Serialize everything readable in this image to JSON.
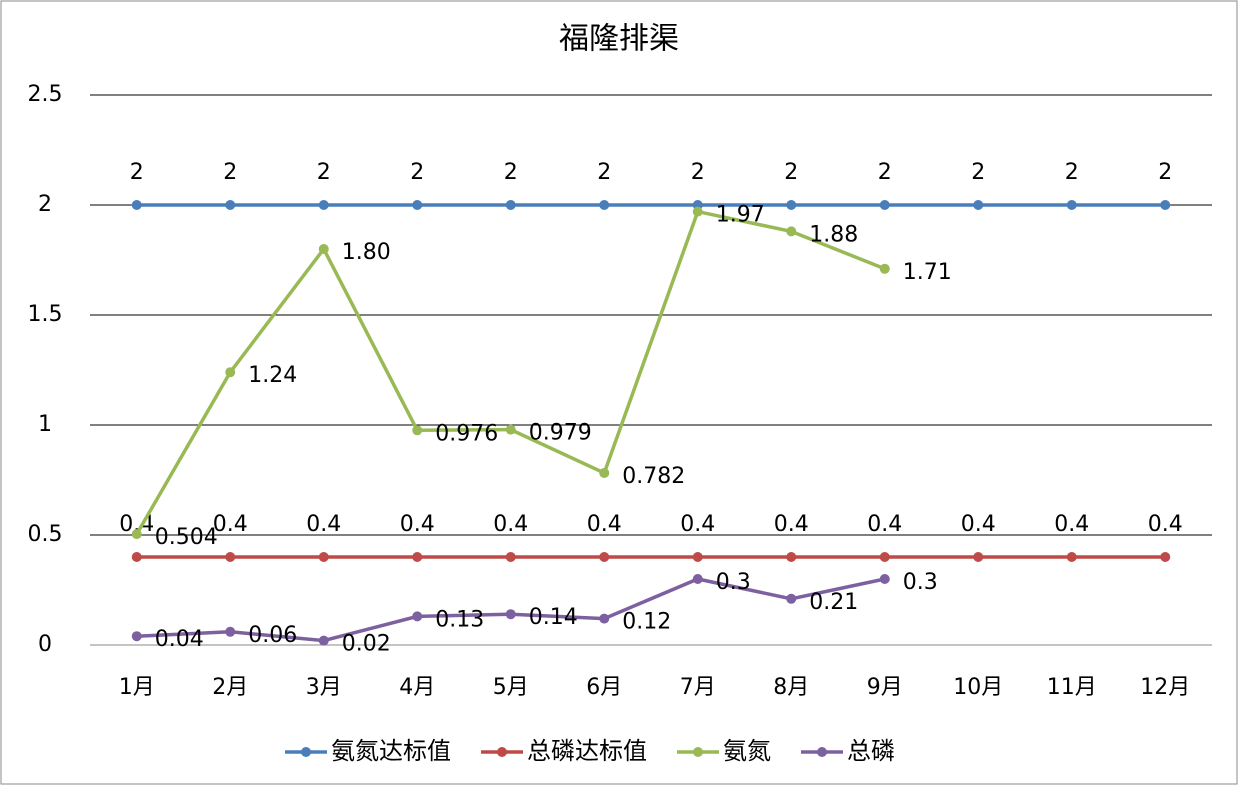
{
  "chart_data": {
    "type": "line",
    "title": "福隆排渠",
    "categories": [
      "1月",
      "2月",
      "3月",
      "4月",
      "5月",
      "6月",
      "7月",
      "8月",
      "9月",
      "10月",
      "11月",
      "12月"
    ],
    "ylim": [
      0,
      2.5
    ],
    "yticks": [
      0,
      0.5,
      1,
      1.5,
      2,
      2.5
    ],
    "grid": true,
    "legend": "bottom",
    "series": [
      {
        "name": "氨氮达标值",
        "color": "#4a7ebb",
        "values": [
          2,
          2,
          2,
          2,
          2,
          2,
          2,
          2,
          2,
          2,
          2,
          2
        ]
      },
      {
        "name": "总磷达标值",
        "color": "#be4b48",
        "values": [
          0.4,
          0.4,
          0.4,
          0.4,
          0.4,
          0.4,
          0.4,
          0.4,
          0.4,
          0.4,
          0.4,
          0.4
        ]
      },
      {
        "name": "氨氮",
        "color": "#98b954",
        "values": [
          0.504,
          1.24,
          1.8,
          0.976,
          0.979,
          0.782,
          1.97,
          1.88,
          1.71,
          null,
          null,
          null
        ],
        "value_labels": [
          "0.504",
          "1.24",
          "1.80",
          "0.976",
          "0.979",
          "0.782",
          "1.97",
          "1.88",
          "1.71",
          null,
          null,
          null
        ]
      },
      {
        "name": "总磷",
        "color": "#7d60a0",
        "values": [
          0.04,
          0.06,
          0.02,
          0.13,
          0.14,
          0.12,
          0.3,
          0.21,
          0.3,
          null,
          null,
          null
        ]
      }
    ]
  }
}
